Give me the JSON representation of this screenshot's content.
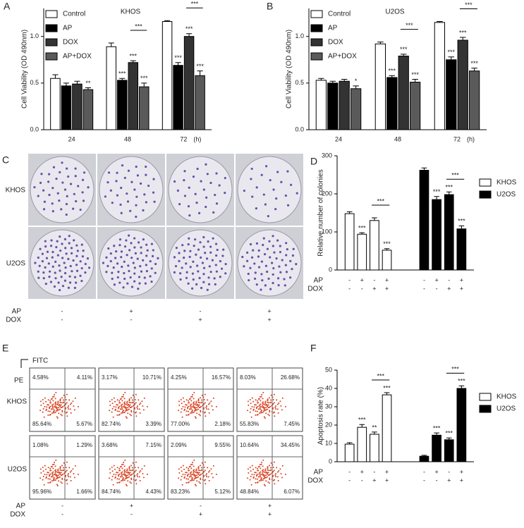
{
  "chart_data": [
    {
      "type": "bar",
      "letter": "A",
      "title": "KHOS",
      "ylabel": "Cell Viability (OD 490nm)",
      "xlabel": "(h)",
      "categories": [
        "24",
        "48",
        "72"
      ],
      "ylim": [
        0,
        1.3
      ],
      "yticks": [
        {
          "value": 0,
          "label": "0.0"
        },
        {
          "value": 0.5,
          "label": "0.5"
        },
        {
          "value": 1,
          "label": "1.0"
        }
      ],
      "series": [
        {
          "name": "Control",
          "color": "#ffffff",
          "values": [
            0.55,
            0.89,
            1.16
          ],
          "errors": [
            0.04,
            0.04,
            0.01
          ],
          "stars": [
            null,
            null,
            null
          ]
        },
        {
          "name": "AP",
          "color": "#000000",
          "values": [
            0.47,
            0.53,
            0.69
          ],
          "errors": [
            0.03,
            0.02,
            0.03
          ],
          "stars": [
            null,
            "***",
            "***"
          ]
        },
        {
          "name": "DOX",
          "color": "#333333",
          "values": [
            0.49,
            0.72,
            1.0
          ],
          "errors": [
            0.03,
            0.02,
            0.03
          ],
          "stars": [
            null,
            "***",
            "***"
          ]
        },
        {
          "name": "AP+DOX",
          "color": "#5a5a5a",
          "values": [
            0.43,
            0.46,
            0.58
          ],
          "errors": [
            0.02,
            0.04,
            0.05
          ],
          "stars": [
            "**",
            "***",
            "***"
          ]
        }
      ],
      "comparisons": [
        {
          "category": "48",
          "label": "***"
        },
        {
          "category": "72",
          "label": "***"
        }
      ]
    },
    {
      "type": "bar",
      "letter": "B",
      "title": "U2OS",
      "ylabel": "Cell Viability (OD 490nm)",
      "xlabel": "(h)",
      "categories": [
        "24",
        "48",
        "72"
      ],
      "ylim": [
        0,
        1.3
      ],
      "yticks": [
        {
          "value": 0,
          "label": "0.0"
        },
        {
          "value": 0.5,
          "label": "0.5"
        },
        {
          "value": 1,
          "label": "1.0"
        }
      ],
      "series": [
        {
          "name": "Control",
          "color": "#ffffff",
          "values": [
            0.53,
            0.92,
            1.15
          ],
          "errors": [
            0.02,
            0.02,
            0.01
          ],
          "stars": [
            null,
            null,
            null
          ]
        },
        {
          "name": "AP",
          "color": "#000000",
          "values": [
            0.5,
            0.56,
            0.75
          ],
          "errors": [
            0.02,
            0.02,
            0.03
          ],
          "stars": [
            null,
            "***",
            "***"
          ]
        },
        {
          "name": "DOX",
          "color": "#333333",
          "values": [
            0.52,
            0.79,
            0.96
          ],
          "errors": [
            0.02,
            0.02,
            0.03
          ],
          "stars": [
            null,
            "***",
            "***"
          ]
        },
        {
          "name": "AP+DOX",
          "color": "#5a5a5a",
          "values": [
            0.44,
            0.51,
            0.63
          ],
          "errors": [
            0.03,
            0.03,
            0.03
          ],
          "stars": [
            "*",
            "***",
            "***"
          ]
        }
      ],
      "comparisons": [
        {
          "category": "48",
          "label": "***"
        },
        {
          "category": "72",
          "label": "***"
        }
      ]
    },
    {
      "type": "bar",
      "letter": "D",
      "ylabel": "Relative number of colonies",
      "ylim": [
        0,
        300
      ],
      "yticks": [
        0,
        100,
        200,
        300
      ],
      "series": [
        {
          "name": "KHOS",
          "color": "#ffffff",
          "values": [
            148,
            94,
            130,
            52
          ],
          "errors": [
            5,
            4,
            7,
            4
          ],
          "stars": [
            null,
            "***",
            null,
            "***"
          ]
        },
        {
          "name": "U2OS",
          "color": "#000000",
          "values": [
            262,
            185,
            198,
            108
          ],
          "errors": [
            6,
            8,
            7,
            8
          ],
          "stars": [
            null,
            "***",
            "***",
            "***"
          ]
        }
      ],
      "comparisons": [
        {
          "series": "KHOS",
          "label": "***"
        },
        {
          "series": "U2OS",
          "label": "***"
        }
      ],
      "conditions": [
        {
          "label": "AP",
          "signs": [
            "-",
            "+",
            "-",
            "+",
            "-",
            "+",
            "-",
            "+"
          ]
        },
        {
          "label": "DOX",
          "signs": [
            "-",
            "-",
            "+",
            "+",
            "-",
            "-",
            "+",
            "+"
          ]
        }
      ]
    },
    {
      "type": "bar",
      "letter": "F",
      "ylabel": "Apoptosis rate (%)",
      "ylim": [
        0,
        50
      ],
      "yticks": [
        0,
        10,
        20,
        30,
        40,
        50
      ],
      "series": [
        {
          "name": "KHOS",
          "color": "#ffffff",
          "values": [
            9.6,
            18.8,
            15.0,
            36.5
          ],
          "errors": [
            0.8,
            1.5,
            1.2,
            1.2
          ],
          "stars": [
            null,
            "***",
            "**",
            "***"
          ]
        },
        {
          "name": "U2OS",
          "color": "#000000",
          "values": [
            3.0,
            14.5,
            12.0,
            40.0
          ],
          "errors": [
            0.5,
            1.2,
            1.0,
            1.4
          ],
          "stars": [
            null,
            "***",
            "***",
            "***"
          ]
        }
      ],
      "comparisons": [
        {
          "series": "KHOS",
          "label": "***"
        },
        {
          "series": "U2OS",
          "label": "***"
        }
      ],
      "conditions": [
        {
          "label": "AP",
          "signs": [
            "-",
            "+",
            "-",
            "+",
            "-",
            "+",
            "-",
            "+"
          ]
        },
        {
          "label": "DOX",
          "signs": [
            "-",
            "-",
            "+",
            "+",
            "-",
            "-",
            "+",
            "+"
          ]
        }
      ]
    }
  ],
  "colony_panel": {
    "letter": "C",
    "rows": [
      "KHOS",
      "U2OS"
    ],
    "conditions": [
      {
        "label": "AP",
        "signs": [
          "-",
          "+",
          "-",
          "+"
        ]
      },
      {
        "label": "DOX",
        "signs": [
          "-",
          "-",
          "+",
          "+"
        ]
      }
    ]
  },
  "flow_panel": {
    "letter": "E",
    "x_label": "FITC",
    "y_label": "PE",
    "rows": [
      {
        "name": "KHOS",
        "plots": [
          {
            "UL": "4.58%",
            "UR": "4.11%",
            "LL": "85.64%",
            "LR": "5.67%"
          },
          {
            "UL": "3.17%",
            "UR": "10.71%",
            "LL": "82.74%",
            "LR": "3.39%"
          },
          {
            "UL": "4.25%",
            "UR": "16.57%",
            "LL": "77.00%",
            "LR": "2.18%"
          },
          {
            "UL": "8.03%",
            "UR": "26.68%",
            "LL": "55.83%",
            "LR": "7.45%"
          }
        ]
      },
      {
        "name": "U2OS",
        "plots": [
          {
            "UL": "1.08%",
            "UR": "1.29%",
            "LL": "95.96%",
            "LR": "1.66%"
          },
          {
            "UL": "3.68%",
            "UR": "7.15%",
            "LL": "84.74%",
            "LR": "4.43%"
          },
          {
            "UL": "2.09%",
            "UR": "9.55%",
            "LL": "83.23%",
            "LR": "5.12%"
          },
          {
            "UL": "10.64%",
            "UR": "34.45%",
            "LL": "48.84%",
            "LR": "6.07%"
          }
        ]
      }
    ],
    "conditions": [
      {
        "label": "AP",
        "signs": [
          "-",
          "+",
          "-",
          "+"
        ]
      },
      {
        "label": "DOX",
        "signs": [
          "-",
          "-",
          "+",
          "+"
        ]
      }
    ]
  }
}
